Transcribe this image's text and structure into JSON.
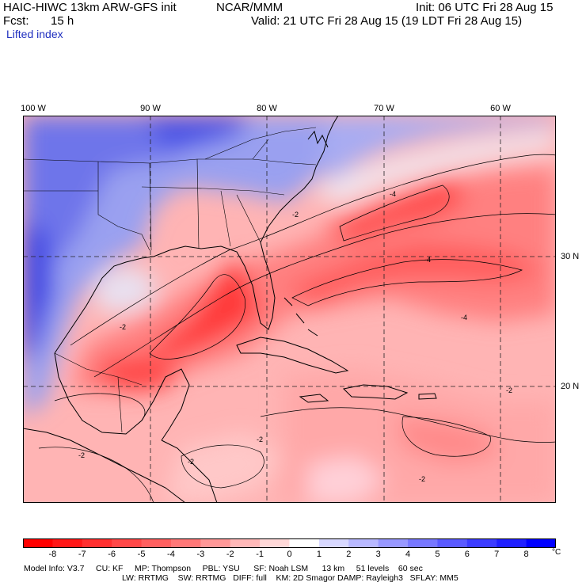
{
  "header": {
    "model_title": "HAIC-HIWC 13km ARW-GFS init",
    "center": "NCAR/MMM",
    "init": "Init: 06 UTC Fri 28 Aug 15",
    "fcst_label": "Fcst:",
    "fcst_value": "15 h",
    "valid": "Valid: 21 UTC Fri 28 Aug 15 (19 LDT Fri 28 Aug 15)",
    "field": "Lifted index"
  },
  "map": {
    "lon_labels": [
      "100 W",
      "90 W",
      "80 W",
      "70 W",
      "60 W"
    ],
    "lat_labels": [
      "30 N",
      "20 N"
    ],
    "contour_labels": [
      "-2",
      "-2",
      "-2",
      "-2",
      "-4",
      "-4",
      "-4",
      "-2",
      "-2",
      "-2"
    ]
  },
  "colorbar": {
    "ticks": [
      "-8",
      "-7",
      "-6",
      "-5",
      "-4",
      "-3",
      "-2",
      "-1",
      "0",
      "1",
      "2",
      "3",
      "4",
      "5",
      "6",
      "7",
      "8"
    ],
    "unit": "°C",
    "colors": [
      "#ff0000",
      "#ff1818",
      "#ff3030",
      "#ff4848",
      "#ff6060",
      "#ff7878",
      "#ff9898",
      "#ffb8b8",
      "#ffd8d8",
      "#ffffff",
      "#d8d8ff",
      "#b8b8ff",
      "#9898ff",
      "#7878ff",
      "#5a5aff",
      "#3c3cff",
      "#2020ff",
      "#0000ff"
    ]
  },
  "footer": {
    "line1": "Model Info: V3.7     CU: KF     MP: Thompson     PBL: YSU      SF: Noah LSM      13 km     51 levels    60 sec",
    "line2": "LW: RRTMG    SW: RRTMG   DIFF: full    KM: 2D Smagor DAMP: Rayleigh3   SFLAY: MM5"
  }
}
